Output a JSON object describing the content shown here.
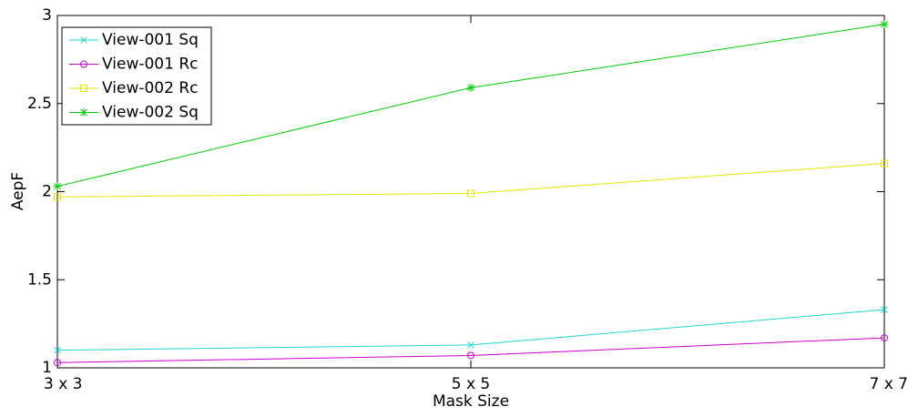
{
  "chart_data": {
    "type": "line",
    "x_label": "Mask Size",
    "y_label": "AepF",
    "categories": [
      "3 x 3",
      "5 x 5",
      "7 x 7"
    ],
    "series": [
      {
        "name": "View-001 Sq",
        "color": "#22d3d3",
        "marker": "x",
        "values": [
          1.1,
          1.13,
          1.33
        ]
      },
      {
        "name": "View-001 Rc",
        "color": "#cc00cc",
        "marker": "o",
        "values": [
          1.03,
          1.07,
          1.17
        ]
      },
      {
        "name": "View-002 Rc",
        "color": "#e5e500",
        "marker": "square",
        "values": [
          1.97,
          1.99,
          2.16
        ]
      },
      {
        "name": "View-002 Sq",
        "color": "#00cc00",
        "marker": "asterisk",
        "values": [
          2.03,
          2.59,
          2.95
        ]
      }
    ],
    "ylim": [
      1,
      3
    ],
    "yticks": [
      1,
      1.5,
      2,
      2.5,
      3
    ],
    "grid": false,
    "legend": "upper left"
  }
}
